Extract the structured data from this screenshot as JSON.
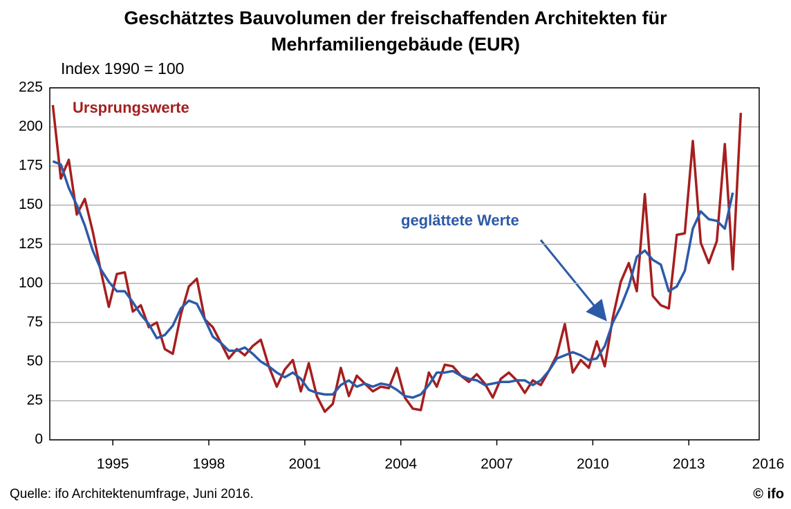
{
  "chart_data": {
    "type": "line",
    "title": "Geschätztes Bauvolumen der freischaffenden Architekten für",
    "subtitle": "Mehrfamiliengebäude (EUR)",
    "y_label": "Index 1990 = 100",
    "source": "Quelle: ifo Architektenumfrage, Juni 2016.",
    "logo": "© ifo",
    "annotations": [
      "Ursprungswerte",
      "geglättete Werte"
    ],
    "x": [
      1993.125,
      1993.375,
      1993.625,
      1993.875,
      1994.125,
      1994.375,
      1994.625,
      1994.875,
      1995.125,
      1995.375,
      1995.625,
      1995.875,
      1996.125,
      1996.375,
      1996.625,
      1996.875,
      1997.125,
      1997.375,
      1997.625,
      1997.875,
      1998.125,
      1998.375,
      1998.625,
      1998.875,
      1999.125,
      1999.375,
      1999.625,
      1999.875,
      2000.125,
      2000.375,
      2000.625,
      2000.875,
      2001.125,
      2001.375,
      2001.625,
      2001.875,
      2002.125,
      2002.375,
      2002.625,
      2002.875,
      2003.125,
      2003.375,
      2003.625,
      2003.875,
      2004.125,
      2004.375,
      2004.625,
      2004.875,
      2005.125,
      2005.375,
      2005.625,
      2005.875,
      2006.125,
      2006.375,
      2006.625,
      2006.875,
      2007.125,
      2007.375,
      2007.625,
      2007.875,
      2008.125,
      2008.375,
      2008.625,
      2008.875,
      2009.125,
      2009.375,
      2009.625,
      2009.875,
      2010.125,
      2010.375,
      2010.625,
      2010.875,
      2011.125,
      2011.375,
      2011.625,
      2011.875,
      2012.125,
      2012.375,
      2012.625,
      2012.875,
      2013.125,
      2013.375,
      2013.625,
      2013.875,
      2014.125,
      2014.375,
      2014.625
    ],
    "series": [
      {
        "name": "Ursprungswerte",
        "color": "#a61e1e",
        "values": [
          214,
          167,
          179,
          144,
          154,
          133,
          108,
          85,
          106,
          107,
          82,
          86,
          72,
          75,
          58,
          55,
          80,
          98,
          103,
          77,
          72,
          62,
          52,
          58,
          54,
          60,
          64,
          47,
          34,
          45,
          51,
          31,
          49,
          28,
          18,
          23,
          46,
          28,
          41,
          36,
          31,
          34,
          33,
          46,
          27,
          20,
          19,
          43,
          34,
          48,
          47,
          41,
          37,
          42,
          36,
          27,
          39,
          43,
          38,
          30,
          38,
          35,
          44,
          54,
          74,
          43,
          51,
          46,
          63,
          47,
          78,
          101,
          113,
          95,
          157,
          92,
          86,
          84,
          131,
          132,
          191,
          126,
          113,
          127,
          189,
          109,
          209
        ]
      },
      {
        "name": "geglättete Werte",
        "color": "#2c5aa8",
        "values": [
          178,
          176,
          161,
          150,
          137,
          121,
          109,
          101,
          95,
          95,
          88,
          80,
          74,
          65,
          67,
          73,
          84,
          89,
          87,
          77,
          66,
          62,
          57,
          57,
          59,
          55,
          50,
          47,
          43,
          40,
          43,
          39,
          32,
          30,
          29,
          29,
          35,
          38,
          34,
          36,
          34,
          36,
          35,
          32,
          28,
          27,
          29,
          35,
          43,
          43,
          44,
          41,
          39,
          38,
          35,
          36,
          37,
          37,
          38,
          38,
          35,
          38,
          44,
          52,
          54,
          56,
          54,
          51,
          52,
          60,
          75,
          85,
          98,
          117,
          121,
          115,
          112,
          95,
          98,
          108,
          135,
          146,
          141,
          140,
          135,
          158,
          null
        ]
      }
    ],
    "xlim": [
      1993.03,
      2015.2
    ],
    "xticks": [
      1995,
      1998,
      2001,
      2004,
      2007,
      2010,
      2013,
      2016
    ],
    "ylim": [
      0,
      225
    ],
    "yticks": [
      0,
      25,
      50,
      75,
      100,
      125,
      150,
      175,
      200,
      225
    ],
    "grid": true
  }
}
